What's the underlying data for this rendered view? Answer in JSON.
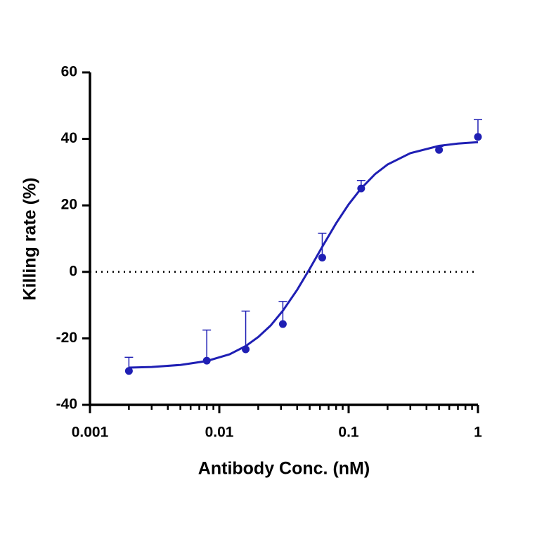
{
  "chart_data": {
    "type": "scatter",
    "x_label": "Antibody Conc. (nM)",
    "y_label": "Killing rate (%)",
    "x": [
      0.002,
      0.008,
      0.016,
      0.031,
      0.0625,
      0.125,
      0.5,
      1
    ],
    "values": [
      -29.8,
      -26.7,
      -23.3,
      -15.7,
      4.3,
      25.1,
      36.7,
      40.6
    ],
    "errors": [
      4.1,
      9.2,
      11.5,
      6.8,
      7.3,
      2.4,
      1,
      5.2
    ],
    "fit": {
      "x": [
        0.002,
        0.003,
        0.005,
        0.008,
        0.012,
        0.016,
        0.02,
        0.025,
        0.031,
        0.04,
        0.05,
        0.0625,
        0.08,
        0.1,
        0.125,
        0.16,
        0.2,
        0.3,
        0.5,
        0.7,
        1
      ],
      "values": [
        -28.8,
        -28.6,
        -28.0,
        -26.8,
        -24.8,
        -22.3,
        -19.6,
        -16.1,
        -11.7,
        -5.4,
        0.9,
        7.5,
        14.6,
        20.3,
        25.1,
        29.4,
        32.3,
        35.7,
        37.9,
        38.6,
        39.0
      ]
    },
    "color": "#1f1fb4",
    "x_log": true,
    "xlim": [
      0.001,
      1
    ],
    "xticks": [
      0.001,
      0.01,
      0.1,
      1
    ],
    "ylim": [
      -40,
      60
    ],
    "yticks": [
      -40,
      -20,
      0,
      20,
      40,
      60
    ],
    "hline": 0
  }
}
